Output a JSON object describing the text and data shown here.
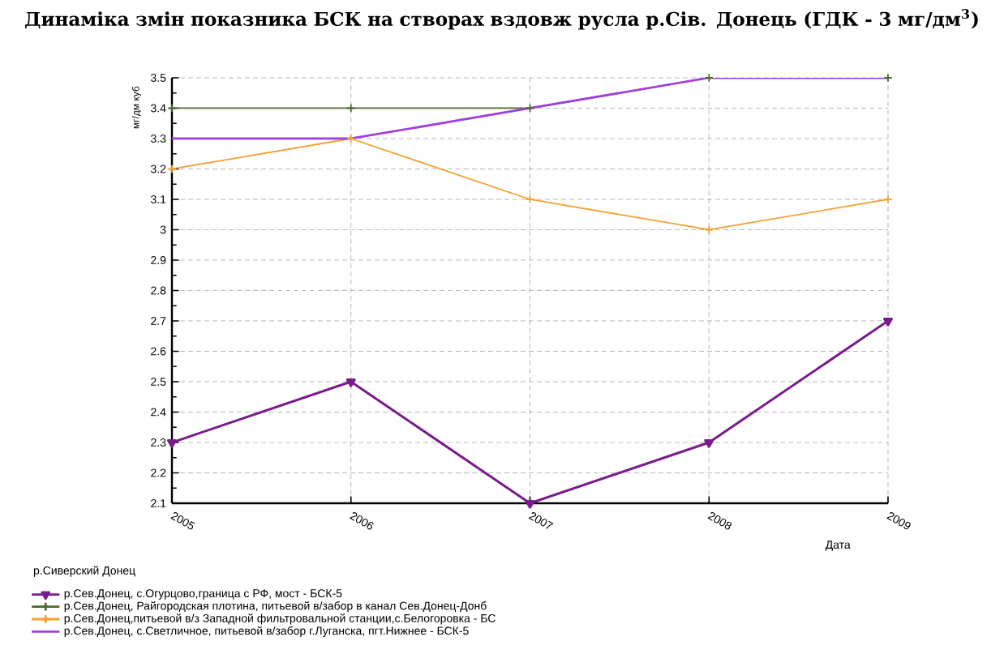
{
  "chart_data": {
    "type": "line",
    "title": "Динаміка змін показника БСК на створах вздовж русла р.Сів. Донець (ГДК - 3 мг/дм$^{3}$)",
    "xlabel": "Дата",
    "ylabel": "мг/дм куб",
    "legend_title": "р.Сиверский Донец",
    "categories": [
      "2005",
      "2006",
      "2007",
      "2008",
      "2009"
    ],
    "ylim": [
      2.1,
      3.5
    ],
    "yticks": [
      2.1,
      2.2,
      2.3,
      2.4,
      2.5,
      2.6,
      2.7,
      2.8,
      2.9,
      3,
      3.1,
      3.2,
      3.3,
      3.4,
      3.5
    ],
    "grid": true,
    "legend": "bottom",
    "series": [
      {
        "name": "р.Сев.Донец, с.Огурцово,граница с РФ, мост - БСК-5",
        "color": "#7a1b8c",
        "marker": "triangle",
        "values": [
          2.3,
          2.5,
          2.1,
          2.3,
          2.7
        ]
      },
      {
        "name": "р.Сев.Донец, Райгородская плотина, питьевой в/забор в канал Сев.Донец-Донб",
        "color": "#4b6b2a",
        "marker": "cross",
        "values": [
          3.4,
          3.4,
          3.4,
          3.5,
          3.5
        ]
      },
      {
        "name": "р.Сев.Донец,питьевой в/з Западной фильтровальной станции,с.Белогоровка - БС",
        "color": "#f5a030",
        "marker": "cross",
        "values": [
          3.2,
          3.3,
          3.1,
          3.0,
          3.1
        ]
      },
      {
        "name": "р.Сев.Донец, с.Светличное, питьевой в/забор г.Луганска, пгт.Нижнее - БСК-5",
        "color": "#a040e0",
        "marker": "none",
        "values": [
          3.3,
          3.3,
          3.4,
          3.5,
          3.5
        ]
      }
    ]
  }
}
